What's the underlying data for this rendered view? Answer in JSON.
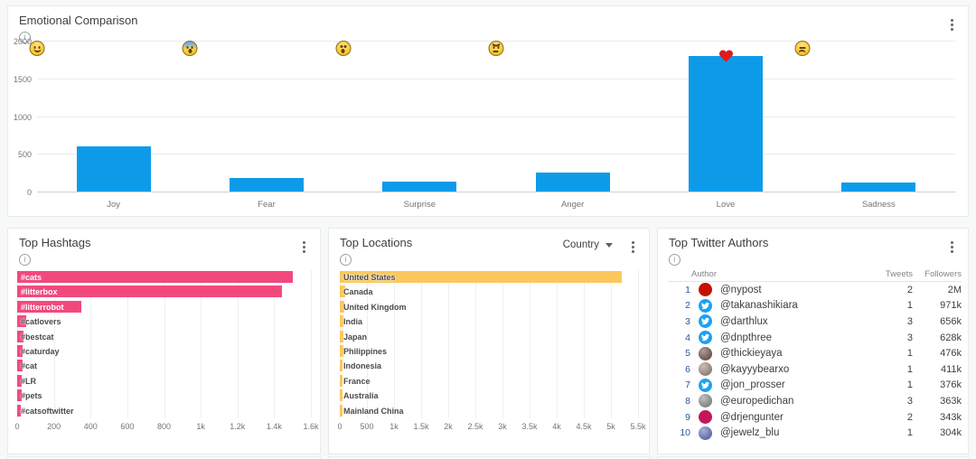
{
  "icons": {
    "info": "i"
  },
  "panels": {
    "emotional": {
      "title": "Emotional Comparison",
      "chart_data": {
        "type": "bar",
        "categories": [
          "Joy",
          "Fear",
          "Surprise",
          "Anger",
          "Love",
          "Sadness"
        ],
        "values": [
          600,
          180,
          130,
          250,
          1800,
          120
        ],
        "marker_icons": [
          "smiling-face",
          "fearful-face",
          "astonished-face",
          "angry-face",
          "red-heart",
          "pensive-face"
        ],
        "bar_color": "#0d9be9",
        "ylim": [
          0,
          2000
        ],
        "yticks": [
          "0",
          "500",
          "1000",
          "1500",
          "2000"
        ],
        "grid": "horizontal",
        "legend": "none"
      }
    },
    "hashtags": {
      "title": "Top Hashtags",
      "chart_data": {
        "type": "bar-horizontal",
        "categories": [
          "#cats",
          "#litterbox",
          "#litterrobot",
          "#catlovers",
          "#bestcat",
          "#caturday",
          "#cat",
          "#LR",
          "#pets",
          "#catsoftwitter"
        ],
        "values": [
          1500,
          1440,
          350,
          50,
          35,
          30,
          28,
          25,
          25,
          22
        ],
        "bar_color": "#f2497d",
        "xlim": [
          0,
          1600
        ],
        "xticks": [
          "0",
          "200",
          "400",
          "600",
          "800",
          "1k",
          "1.2k",
          "1.4k",
          "1.6k"
        ],
        "grid": "vertical"
      }
    },
    "locations": {
      "title": "Top Locations",
      "filter": {
        "label": "Country"
      },
      "chart_data": {
        "type": "bar-horizontal",
        "categories": [
          "United States",
          "Canada",
          "United Kingdom",
          "India",
          "Japan",
          "Philippines",
          "Indonesia",
          "France",
          "Australia",
          "Mainland China"
        ],
        "values": [
          5200,
          100,
          85,
          75,
          70,
          60,
          55,
          50,
          45,
          45
        ],
        "bar_color": "#fcc75c",
        "xlim": [
          0,
          5500
        ],
        "xticks": [
          "0",
          "500",
          "1k",
          "1.5k",
          "2k",
          "2.5k",
          "3k",
          "3.5k",
          "4k",
          "4.5k",
          "5k",
          "5.5k"
        ],
        "grid": "vertical"
      }
    },
    "authors": {
      "title": "Top Twitter Authors",
      "columns": [
        "Author",
        "Tweets",
        "Followers"
      ],
      "rows": [
        {
          "rank": "1",
          "handle": "@nypost",
          "tweets": "2",
          "followers": "2M",
          "avatar": {
            "type": "logo",
            "color": "#c41200"
          }
        },
        {
          "rank": "2",
          "handle": "@takanashikiara",
          "tweets": "1",
          "followers": "971k",
          "avatar": {
            "type": "twitter-bird",
            "color": "#1da1f2"
          }
        },
        {
          "rank": "3",
          "handle": "@darthlux",
          "tweets": "3",
          "followers": "656k",
          "avatar": {
            "type": "twitter-bird",
            "color": "#1da1f2"
          }
        },
        {
          "rank": "4",
          "handle": "@dnpthree",
          "tweets": "3",
          "followers": "628k",
          "avatar": {
            "type": "twitter-bird",
            "color": "#1da1f2"
          }
        },
        {
          "rank": "5",
          "handle": "@thickieyaya",
          "tweets": "1",
          "followers": "476k",
          "avatar": {
            "type": "photo",
            "color": "#6d4c41"
          }
        },
        {
          "rank": "6",
          "handle": "@kayyybearxo",
          "tweets": "1",
          "followers": "411k",
          "avatar": {
            "type": "photo",
            "color": "#a1887f"
          }
        },
        {
          "rank": "7",
          "handle": "@jon_prosser",
          "tweets": "1",
          "followers": "376k",
          "avatar": {
            "type": "twitter-bird",
            "color": "#1da1f2"
          }
        },
        {
          "rank": "8",
          "handle": "@europedichan",
          "tweets": "3",
          "followers": "363k",
          "avatar": {
            "type": "photo",
            "color": "#8d8d8d"
          }
        },
        {
          "rank": "9",
          "handle": "@drjengunter",
          "tweets": "2",
          "followers": "343k",
          "avatar": {
            "type": "logo",
            "color": "#c2185b"
          }
        },
        {
          "rank": "10",
          "handle": "@jewelz_blu",
          "tweets": "1",
          "followers": "304k",
          "avatar": {
            "type": "photo",
            "color": "#5c6bc0"
          }
        }
      ]
    }
  }
}
